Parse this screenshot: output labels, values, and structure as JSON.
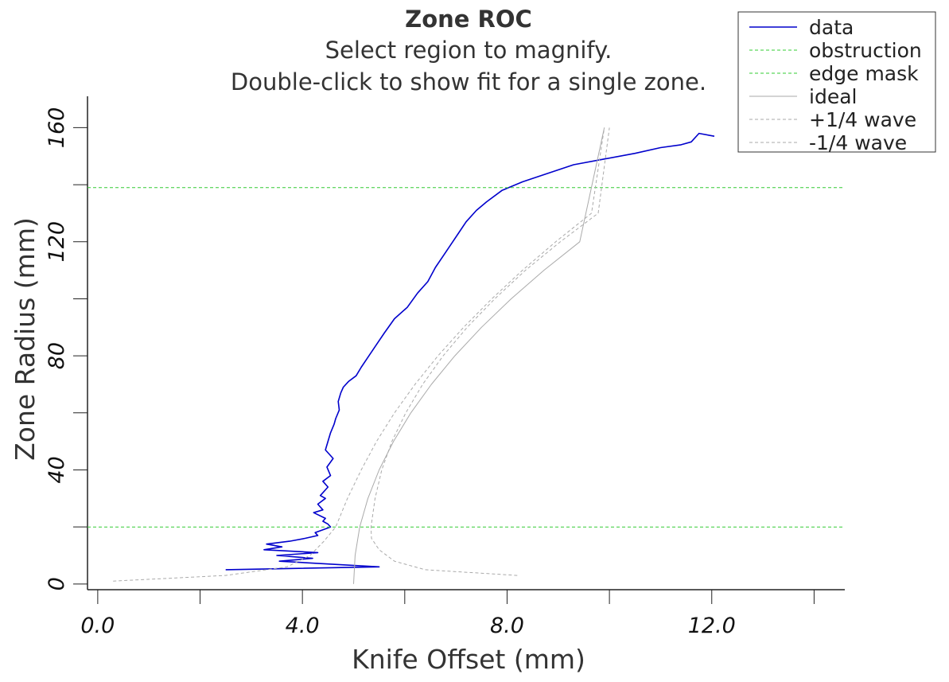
{
  "chart_data": {
    "type": "line",
    "title": "Zone ROC",
    "subtitle_lines": [
      "Select region to magnify.",
      "Double-click to show fit for a single zone."
    ],
    "xlabel": "Knife Offset (mm)",
    "ylabel": "Zone Radius (mm)",
    "xlim": [
      -0.2,
      14.6
    ],
    "ylim": [
      -2,
      171
    ],
    "x_ticks": [
      0,
      2,
      4,
      6,
      8,
      10,
      12,
      14
    ],
    "x_tick_labels": [
      {
        "value": 0,
        "label": "0.0"
      },
      {
        "value": 4,
        "label": "4.0"
      },
      {
        "value": 8,
        "label": "8.0"
      },
      {
        "value": 12,
        "label": "12.0"
      }
    ],
    "y_ticks": [
      0,
      20,
      40,
      60,
      80,
      100,
      120,
      140,
      160
    ],
    "y_tick_labels": [
      {
        "value": 0,
        "label": "0"
      },
      {
        "value": 40,
        "label": "40"
      },
      {
        "value": 80,
        "label": "80"
      },
      {
        "value": 120,
        "label": "120"
      },
      {
        "value": 160,
        "label": "160"
      }
    ],
    "grid": false,
    "legend_position": "top-right",
    "colors": {
      "data": "#0000cc",
      "obstruction": "#33cc33",
      "edge_mask": "#33cc33",
      "ideal": "#aaaaaa",
      "plus_quarter": "#aaaaaa",
      "minus_quarter": "#aaaaaa"
    },
    "obstruction_radius": 20,
    "edge_mask_radius": 139,
    "series": [
      {
        "name": "data",
        "style": "solid",
        "x": [
          12.05,
          11.75,
          11.6,
          11.4,
          11.0,
          10.5,
          9.9,
          9.3,
          8.8,
          8.3,
          7.9,
          7.6,
          7.4,
          7.2,
          7.05,
          6.9,
          6.75,
          6.6,
          6.45,
          6.25,
          6.05,
          5.8,
          5.6,
          5.45,
          5.3,
          5.15,
          5.05,
          4.9,
          4.8,
          4.75,
          4.7,
          4.72,
          4.65,
          4.62,
          4.55,
          4.5,
          4.45,
          4.6,
          4.48,
          4.55,
          4.4,
          4.5,
          4.35,
          4.45,
          4.3,
          4.4,
          4.22,
          4.45,
          4.4,
          4.5,
          4.55,
          4.4,
          4.25,
          4.3,
          4.05,
          3.75,
          3.3,
          3.6,
          3.25,
          4.3,
          3.5,
          4.2,
          3.55,
          5.5,
          2.5
        ],
        "y": [
          157,
          158,
          155,
          154,
          153,
          151,
          149,
          147,
          144,
          141,
          138,
          134,
          131,
          127,
          123,
          119,
          115,
          111,
          106,
          102,
          97,
          93,
          88,
          84,
          80,
          76,
          73,
          71,
          69,
          67,
          64,
          61,
          58,
          56,
          53,
          50,
          47,
          44,
          41,
          38,
          36,
          34,
          31,
          30,
          28,
          26,
          25,
          23,
          22,
          21,
          20,
          19,
          18,
          17,
          16,
          15,
          14,
          13,
          12,
          11,
          10,
          9,
          8,
          6,
          5
        ]
      },
      {
        "name": "obstruction",
        "style": "dashed",
        "x": [
          -0.2,
          14.6
        ],
        "y": [
          20,
          20
        ]
      },
      {
        "name": "edge mask",
        "style": "dashed",
        "x": [
          -0.2,
          14.6
        ],
        "y": [
          139,
          139
        ]
      },
      {
        "name": "ideal",
        "style": "solid",
        "x": [
          5.0,
          5.03,
          5.12,
          5.28,
          5.5,
          5.78,
          6.12,
          6.52,
          6.98,
          7.5,
          8.08,
          8.72,
          9.42,
          9.9
        ],
        "y": [
          0,
          10,
          20,
          30,
          40,
          50,
          60,
          70,
          80,
          90,
          100,
          110,
          120,
          160
        ]
      },
      {
        "name": "+1/4 wave",
        "style": "dashed",
        "x": [
          8.2,
          6.4,
          5.8,
          5.5,
          5.35,
          5.34,
          5.42,
          5.55,
          5.75,
          6.02,
          6.35,
          6.75,
          7.22,
          7.76,
          8.36,
          9.04,
          9.78,
          10.0
        ],
        "y": [
          3,
          5,
          8,
          12,
          16,
          20,
          30,
          40,
          50,
          60,
          70,
          80,
          90,
          100,
          110,
          120,
          130,
          160
        ]
      },
      {
        "name": "-1/4 wave",
        "style": "dashed",
        "x": [
          0.3,
          2.5,
          3.7,
          4.15,
          4.42,
          4.65,
          4.88,
          5.15,
          5.45,
          5.8,
          6.2,
          6.65,
          7.15,
          7.7,
          8.3,
          8.95,
          9.65,
          9.9
        ],
        "y": [
          1,
          3,
          6,
          10,
          15,
          20,
          30,
          40,
          50,
          60,
          70,
          80,
          90,
          100,
          110,
          120,
          130,
          160
        ]
      }
    ]
  }
}
